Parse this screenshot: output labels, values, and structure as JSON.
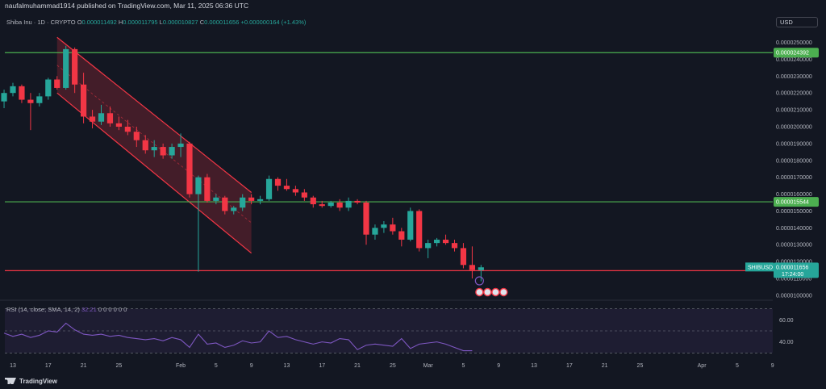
{
  "header": {
    "published": "naufalmuhammad1914 published on TradingView.com, Mar 11, 2025 06:36 UTC",
    "symbol_line": "Shiba Inu · 1D · CRYPTO",
    "o_label": "O",
    "o_value": "0.000011492",
    "h_label": "H",
    "h_value": "0.000011795",
    "l_label": "L",
    "l_value": "0.000010827",
    "c_label": "C",
    "c_value": "0.000011656",
    "change": "+0.000000164 (+1.43%)",
    "currency_button": "USD"
  },
  "chart_data": {
    "type": "candlestick",
    "symbol": "SHIBUSD",
    "y_ticks": [
      "0.0000250000",
      "0.0000240000",
      "0.0000230000",
      "0.0000220000",
      "0.0000210000",
      "0.0000200000",
      "0.0000190000",
      "0.0000180000",
      "0.0000170000",
      "0.0000160000",
      "0.0000150000",
      "0.0000140000",
      "0.0000130000",
      "0.0000120000",
      "0.0000110000",
      "0.0000100000"
    ],
    "y_tick_values": [
      25,
      24,
      23,
      22,
      21,
      20,
      19,
      18,
      17,
      16,
      15,
      14,
      13,
      12,
      11,
      10
    ],
    "ylim": [
      9.9,
      25.6
    ],
    "value_unit_note": "values in 1e-6 USD",
    "x_labels": [
      "13",
      "17",
      "21",
      "25",
      "Feb",
      "5",
      "9",
      "13",
      "17",
      "21",
      "25",
      "Mar",
      "5",
      "9",
      "13",
      "17",
      "21",
      "25",
      "Apr",
      "5",
      "9"
    ],
    "x_label_days": [
      0,
      4,
      8,
      12,
      19,
      23,
      27,
      31,
      35,
      39,
      43,
      47,
      51,
      55,
      59,
      63,
      67,
      71,
      78,
      82,
      86
    ],
    "start_date": "2025-01-13",
    "candles": [
      {
        "d": -1,
        "o": 21.5,
        "h": 22.2,
        "l": 21.1,
        "c": 22.0
      },
      {
        "d": 0,
        "o": 22.0,
        "h": 22.6,
        "l": 21.8,
        "c": 22.4
      },
      {
        "d": 1,
        "o": 22.4,
        "h": 22.5,
        "l": 21.4,
        "c": 21.6
      },
      {
        "d": 2,
        "o": 21.6,
        "h": 22.0,
        "l": 19.8,
        "c": 21.4
      },
      {
        "d": 3,
        "o": 21.4,
        "h": 22.0,
        "l": 21.2,
        "c": 21.8
      },
      {
        "d": 4,
        "o": 21.8,
        "h": 22.9,
        "l": 21.6,
        "c": 22.8
      },
      {
        "d": 5,
        "o": 22.8,
        "h": 23.0,
        "l": 22.2,
        "c": 22.3
      },
      {
        "d": 6,
        "o": 22.3,
        "h": 24.8,
        "l": 22.2,
        "c": 24.6
      },
      {
        "d": 7,
        "o": 24.6,
        "h": 24.7,
        "l": 22.0,
        "c": 22.5
      },
      {
        "d": 8,
        "o": 22.5,
        "h": 23.2,
        "l": 20.2,
        "c": 20.6
      },
      {
        "d": 9,
        "o": 20.6,
        "h": 21.0,
        "l": 19.9,
        "c": 20.3
      },
      {
        "d": 10,
        "o": 20.3,
        "h": 21.3,
        "l": 20.1,
        "c": 20.8
      },
      {
        "d": 11,
        "o": 20.8,
        "h": 21.2,
        "l": 20.0,
        "c": 20.2
      },
      {
        "d": 12,
        "o": 20.2,
        "h": 20.6,
        "l": 19.8,
        "c": 20.0
      },
      {
        "d": 13,
        "o": 20.0,
        "h": 20.4,
        "l": 19.5,
        "c": 19.7
      },
      {
        "d": 14,
        "o": 19.7,
        "h": 20.0,
        "l": 18.8,
        "c": 19.2
      },
      {
        "d": 15,
        "o": 19.2,
        "h": 19.5,
        "l": 18.4,
        "c": 18.6
      },
      {
        "d": 16,
        "o": 18.6,
        "h": 19.2,
        "l": 18.2,
        "c": 18.8
      },
      {
        "d": 17,
        "o": 18.8,
        "h": 19.0,
        "l": 18.1,
        "c": 18.3
      },
      {
        "d": 18,
        "o": 18.3,
        "h": 19.0,
        "l": 18.1,
        "c": 18.8
      },
      {
        "d": 19,
        "o": 18.8,
        "h": 19.6,
        "l": 18.2,
        "c": 19.0
      },
      {
        "d": 20,
        "o": 19.0,
        "h": 19.1,
        "l": 15.8,
        "c": 16.0
      },
      {
        "d": 21,
        "o": 16.0,
        "h": 17.1,
        "l": 11.4,
        "c": 17.0
      },
      {
        "d": 22,
        "o": 17.0,
        "h": 17.2,
        "l": 15.5,
        "c": 15.6
      },
      {
        "d": 23,
        "o": 15.6,
        "h": 16.0,
        "l": 15.4,
        "c": 15.8
      },
      {
        "d": 24,
        "o": 15.8,
        "h": 15.9,
        "l": 14.8,
        "c": 15.0
      },
      {
        "d": 25,
        "o": 15.0,
        "h": 15.3,
        "l": 14.8,
        "c": 15.2
      },
      {
        "d": 26,
        "o": 15.2,
        "h": 16.0,
        "l": 15.0,
        "c": 15.8
      },
      {
        "d": 27,
        "o": 15.8,
        "h": 16.0,
        "l": 15.4,
        "c": 15.6
      },
      {
        "d": 28,
        "o": 15.6,
        "h": 15.9,
        "l": 15.4,
        "c": 15.7
      },
      {
        "d": 29,
        "o": 15.7,
        "h": 17.1,
        "l": 15.6,
        "c": 16.9
      },
      {
        "d": 30,
        "o": 16.9,
        "h": 17.0,
        "l": 16.2,
        "c": 16.5
      },
      {
        "d": 31,
        "o": 16.5,
        "h": 16.9,
        "l": 16.2,
        "c": 16.3
      },
      {
        "d": 32,
        "o": 16.3,
        "h": 16.5,
        "l": 15.9,
        "c": 16.1
      },
      {
        "d": 33,
        "o": 16.1,
        "h": 16.3,
        "l": 15.6,
        "c": 15.8
      },
      {
        "d": 34,
        "o": 15.8,
        "h": 15.9,
        "l": 15.2,
        "c": 15.4
      },
      {
        "d": 35,
        "o": 15.4,
        "h": 15.6,
        "l": 15.2,
        "c": 15.3
      },
      {
        "d": 36,
        "o": 15.3,
        "h": 15.6,
        "l": 15.2,
        "c": 15.5
      },
      {
        "d": 37,
        "o": 15.5,
        "h": 15.7,
        "l": 15.0,
        "c": 15.2
      },
      {
        "d": 38,
        "o": 15.2,
        "h": 15.8,
        "l": 15.0,
        "c": 15.6
      },
      {
        "d": 39,
        "o": 15.6,
        "h": 15.7,
        "l": 15.4,
        "c": 15.5
      },
      {
        "d": 40,
        "o": 15.5,
        "h": 15.6,
        "l": 13.0,
        "c": 13.6
      },
      {
        "d": 41,
        "o": 13.6,
        "h": 14.2,
        "l": 13.3,
        "c": 14.0
      },
      {
        "d": 42,
        "o": 14.0,
        "h": 14.4,
        "l": 13.7,
        "c": 14.2
      },
      {
        "d": 43,
        "o": 14.2,
        "h": 14.6,
        "l": 13.6,
        "c": 13.8
      },
      {
        "d": 44,
        "o": 13.8,
        "h": 14.0,
        "l": 12.9,
        "c": 13.3
      },
      {
        "d": 45,
        "o": 13.3,
        "h": 15.2,
        "l": 13.2,
        "c": 15.0
      },
      {
        "d": 46,
        "o": 15.0,
        "h": 15.1,
        "l": 12.6,
        "c": 12.8
      },
      {
        "d": 47,
        "o": 12.8,
        "h": 13.3,
        "l": 12.2,
        "c": 13.1
      },
      {
        "d": 48,
        "o": 13.1,
        "h": 13.4,
        "l": 12.9,
        "c": 13.3
      },
      {
        "d": 49,
        "o": 13.3,
        "h": 13.6,
        "l": 13.0,
        "c": 13.1
      },
      {
        "d": 50,
        "o": 13.1,
        "h": 13.3,
        "l": 12.6,
        "c": 12.8
      },
      {
        "d": 51,
        "o": 12.8,
        "h": 13.1,
        "l": 11.6,
        "c": 11.8
      },
      {
        "d": 52,
        "o": 11.8,
        "h": 12.9,
        "l": 11.0,
        "c": 11.5
      },
      {
        "d": 53,
        "o": 11.49,
        "h": 11.8,
        "l": 10.83,
        "c": 11.66
      }
    ],
    "channel": {
      "upper": [
        [
          5,
          25.3
        ],
        [
          27,
          16.1
        ]
      ],
      "lower": [
        [
          5,
          22.0
        ],
        [
          27,
          12.5
        ]
      ]
    },
    "h_lines": [
      {
        "price": 24.392,
        "label": "0.000024392",
        "color": "#4caf50"
      },
      {
        "price": 15.544,
        "label": "0.000015544",
        "color": "#4caf50"
      },
      {
        "price": 11.461,
        "label": "0.000011461",
        "color": "#f23645"
      }
    ],
    "price_tag": {
      "symbol": "SHIBUSD",
      "price": "0.000011656",
      "countdown": "17:24:00",
      "value": 11.656
    },
    "rsi": {
      "label": "RSI (14, close, SMA, 14, 2)",
      "value_text": "32.21",
      "extra_values": [
        "0",
        "0",
        "0",
        "0",
        "0",
        "0"
      ],
      "ticks": [
        "60.00",
        "40.00"
      ],
      "tick_values": [
        60,
        40
      ],
      "ylim": [
        28,
        72
      ],
      "values": [
        48,
        45,
        47,
        44,
        46,
        50,
        49,
        57,
        51,
        47,
        46,
        47,
        45,
        46,
        44,
        43,
        42,
        43,
        41,
        44,
        42,
        35,
        47,
        38,
        39,
        35,
        37,
        41,
        39,
        40,
        50,
        44,
        45,
        42,
        40,
        38,
        40,
        39,
        43,
        42,
        33,
        37,
        38,
        37,
        36,
        43,
        34,
        38,
        39,
        40,
        38,
        35,
        32,
        32
      ],
      "color": "#7e57c2"
    }
  },
  "footer": {
    "brand": "TradingView"
  }
}
